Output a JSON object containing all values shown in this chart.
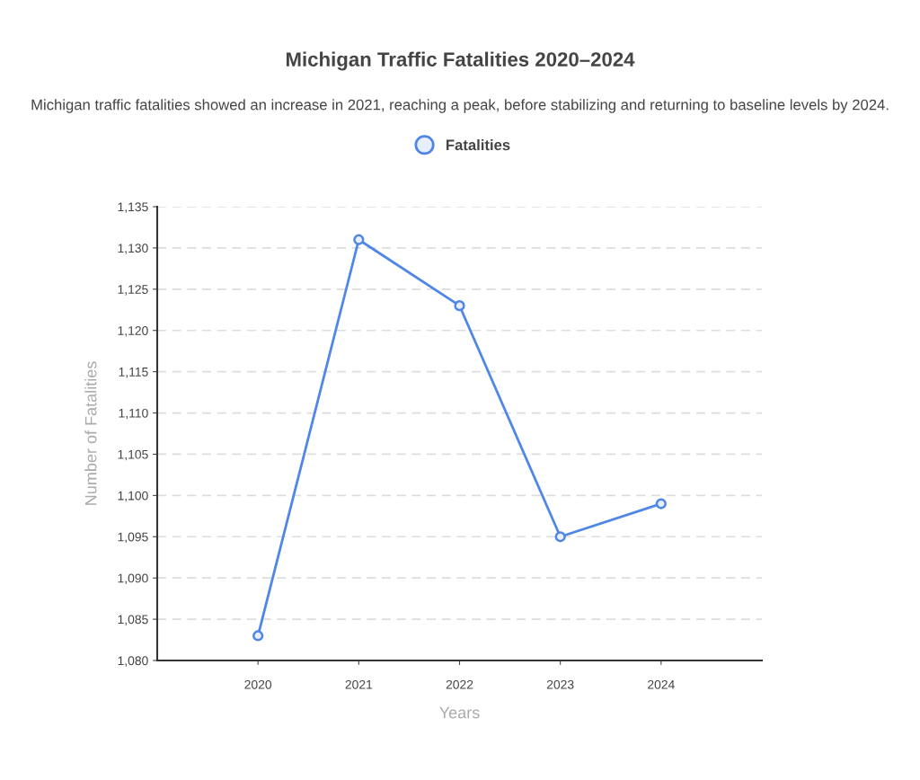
{
  "chart_data": {
    "type": "line",
    "title": "Michigan Traffic Fatalities 2020–2024",
    "subtitle": "Michigan traffic fatalities showed an increase in 2021, reaching a peak, before stabilizing and returning to baseline levels by 2024.",
    "xlabel": "Years",
    "ylabel": "Number of Fatalities",
    "categories": [
      "2020",
      "2021",
      "2022",
      "2023",
      "2024"
    ],
    "series": [
      {
        "name": "Fatalities",
        "color": "#4f86e8",
        "values": [
          1083,
          1131,
          1123,
          1095,
          1099
        ]
      }
    ],
    "ylim": [
      1080,
      1135
    ],
    "yticks": [
      {
        "value": 1080,
        "label": "1,080"
      },
      {
        "value": 1085,
        "label": "1,085"
      },
      {
        "value": 1090,
        "label": "1,090"
      },
      {
        "value": 1095,
        "label": "1,095"
      },
      {
        "value": 1100,
        "label": "1,100"
      },
      {
        "value": 1105,
        "label": "1,105"
      },
      {
        "value": 1110,
        "label": "1,110"
      },
      {
        "value": 1115,
        "label": "1,115"
      },
      {
        "value": 1120,
        "label": "1,120"
      },
      {
        "value": 1125,
        "label": "1,125"
      },
      {
        "value": 1130,
        "label": "1,130"
      },
      {
        "value": 1135,
        "label": "1,135"
      }
    ],
    "grid": "y",
    "legend": "top",
    "marker": "circle",
    "line_style": "solid"
  }
}
